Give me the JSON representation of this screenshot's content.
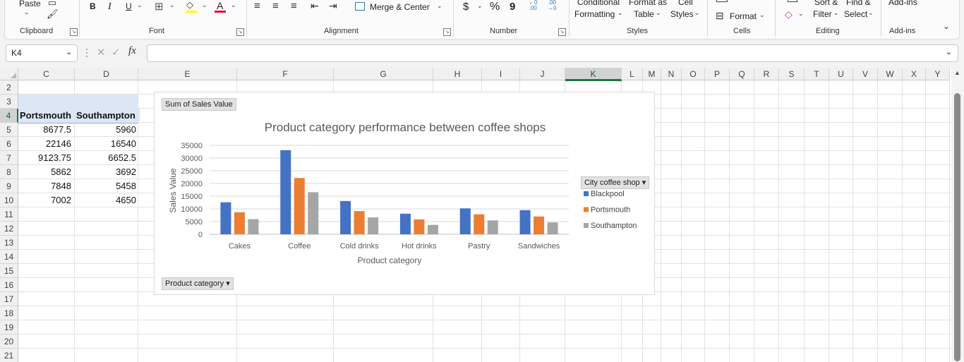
{
  "ribbon": {
    "clipboard": {
      "paste": "Paste",
      "label": "Clipboard"
    },
    "font": {
      "bold": "B",
      "italic": "I",
      "underline": "U",
      "font_color_letter": "A",
      "label": "Font"
    },
    "alignment": {
      "merge": "Merge & Center",
      "label": "Alignment"
    },
    "number": {
      "currency": "$",
      "percent": "%",
      "comma": "9",
      "label": "Number"
    },
    "styles": {
      "conditional_1": "Conditional",
      "conditional_2": "Formatting",
      "format_as_1": "Format as",
      "format_as_2": "Table",
      "cell_1": "Cell",
      "cell_2": "Styles",
      "label": "Styles"
    },
    "cells": {
      "format": "Format",
      "label": "Cells"
    },
    "editing": {
      "sort_1": "Sort &",
      "sort_2": "Filter",
      "find_1": "Find &",
      "find_2": "Select",
      "label": "Editing"
    },
    "addins": {
      "top": "Add-ins",
      "label": "Add-ins"
    }
  },
  "formula_bar": {
    "name_box": "K4",
    "fx": "fx",
    "value": ""
  },
  "columns": [
    {
      "name": "C"
    },
    {
      "name": "D"
    },
    {
      "name": "E"
    },
    {
      "name": "F"
    },
    {
      "name": "G"
    },
    {
      "name": "H"
    },
    {
      "name": "I"
    },
    {
      "name": "J"
    },
    {
      "name": "K"
    },
    {
      "name": "L"
    },
    {
      "name": "M"
    },
    {
      "name": "N"
    },
    {
      "name": "O"
    },
    {
      "name": "P"
    },
    {
      "name": "Q"
    },
    {
      "name": "R"
    },
    {
      "name": "S"
    },
    {
      "name": "T"
    },
    {
      "name": "U"
    },
    {
      "name": "V"
    },
    {
      "name": "W"
    },
    {
      "name": "X"
    },
    {
      "name": "Y"
    }
  ],
  "rows": [
    "2",
    "3",
    "4",
    "5",
    "6",
    "7",
    "8",
    "9",
    "10",
    "11",
    "12",
    "13",
    "14",
    "15",
    "16",
    "17",
    "18",
    "19",
    "20",
    "21"
  ],
  "table": {
    "headers": [
      "Portsmouth",
      "Southampton"
    ],
    "values": [
      [
        "8677.5",
        "5960"
      ],
      [
        "22146",
        "16540"
      ],
      [
        "9123.75",
        "6652.5"
      ],
      [
        "5862",
        "3692"
      ],
      [
        "7848",
        "5458"
      ],
      [
        "7002",
        "4650"
      ]
    ]
  },
  "pivot": {
    "values_button": "Sum of Sales Value",
    "legend_button": "City coffee shop",
    "axis_button": "Product category"
  },
  "chart_data": {
    "type": "bar",
    "title": "Product category performance between coffee shops",
    "xlabel": "Product category",
    "ylabel": "Sales Value",
    "categories": [
      "Cakes",
      "Coffee",
      "Cold drinks",
      "Hot drinks",
      "Pastry",
      "Sandwiches"
    ],
    "series": [
      {
        "name": "Blackpool",
        "color": "#4472c4",
        "values": [
          12600,
          33100,
          13100,
          8100,
          10200,
          9500
        ]
      },
      {
        "name": "Portsmouth",
        "color": "#ed7d31",
        "values": [
          8677.5,
          22146,
          9123.75,
          5862,
          7848,
          7002
        ]
      },
      {
        "name": "Southampton",
        "color": "#a5a5a5",
        "values": [
          5960,
          16540,
          6652.5,
          3692,
          5458,
          4650
        ]
      }
    ],
    "yticks": [
      "0",
      "5000",
      "10000",
      "15000",
      "20000",
      "25000",
      "30000",
      "35000"
    ],
    "ylim": [
      0,
      35000
    ],
    "grid": true,
    "legend": "right"
  }
}
